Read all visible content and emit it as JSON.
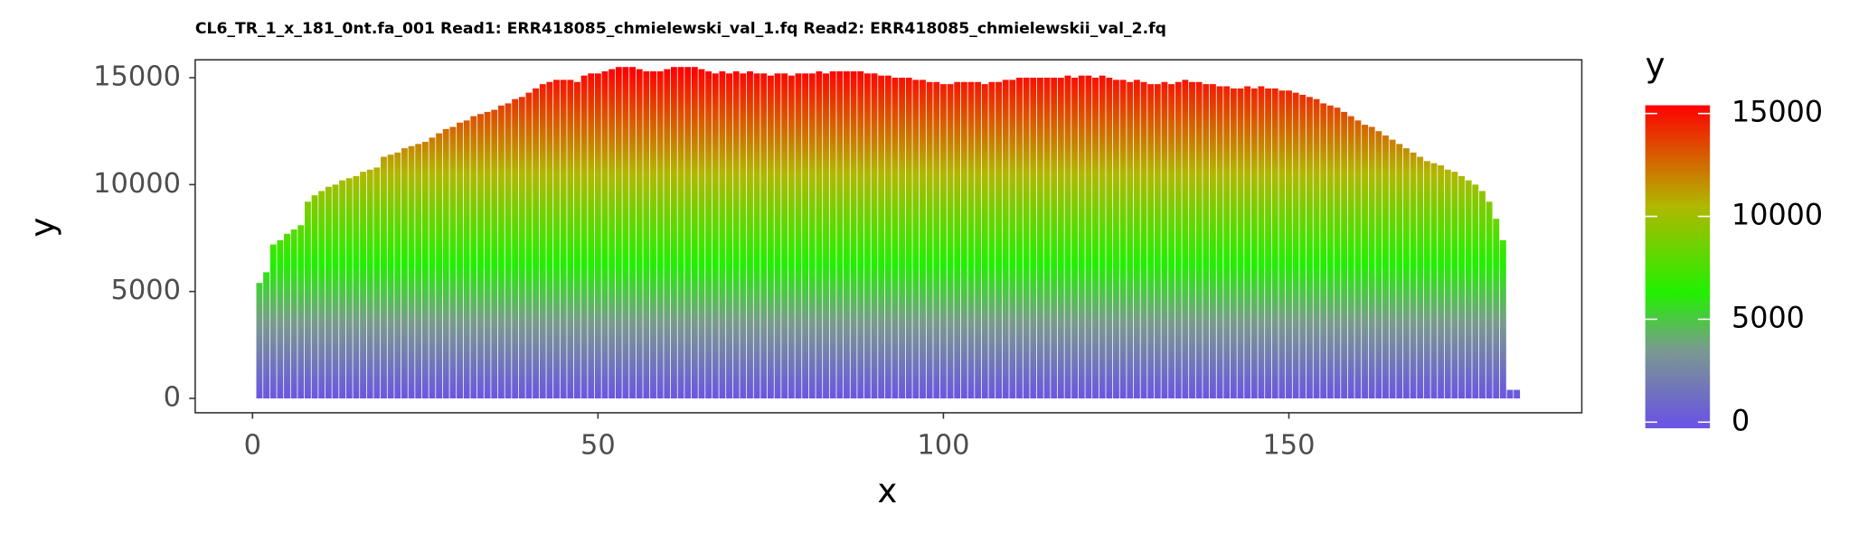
{
  "chart_data": {
    "type": "bar",
    "title": "CL6_TR_1_x_181_0nt.fa_001 Read1: ERR418085_chmielewski_val_1.fq Read2: ERR418085_chmielewskii_val_2.fq",
    "xlabel": "x",
    "ylabel": "y",
    "legend_title": "y",
    "x": [
      1,
      2,
      3,
      4,
      5,
      6,
      7,
      8,
      9,
      10,
      11,
      12,
      13,
      14,
      15,
      16,
      17,
      18,
      19,
      20,
      21,
      22,
      23,
      24,
      25,
      26,
      27,
      28,
      29,
      30,
      31,
      32,
      33,
      34,
      35,
      36,
      37,
      38,
      39,
      40,
      41,
      42,
      43,
      44,
      45,
      46,
      47,
      48,
      49,
      50,
      51,
      52,
      53,
      54,
      55,
      56,
      57,
      58,
      59,
      60,
      61,
      62,
      63,
      64,
      65,
      66,
      67,
      68,
      69,
      70,
      71,
      72,
      73,
      74,
      75,
      76,
      77,
      78,
      79,
      80,
      81,
      82,
      83,
      84,
      85,
      86,
      87,
      88,
      89,
      90,
      91,
      92,
      93,
      94,
      95,
      96,
      97,
      98,
      99,
      100,
      101,
      102,
      103,
      104,
      105,
      106,
      107,
      108,
      109,
      110,
      111,
      112,
      113,
      114,
      115,
      116,
      117,
      118,
      119,
      120,
      121,
      122,
      123,
      124,
      125,
      126,
      127,
      128,
      129,
      130,
      131,
      132,
      133,
      134,
      135,
      136,
      137,
      138,
      139,
      140,
      141,
      142,
      143,
      144,
      145,
      146,
      147,
      148,
      149,
      150,
      151,
      152,
      153,
      154,
      155,
      156,
      157,
      158,
      159,
      160,
      161,
      162,
      163,
      164,
      165,
      166,
      167,
      168,
      169,
      170,
      171,
      172,
      173,
      174,
      175,
      176,
      177,
      178,
      179,
      180,
      181,
      182,
      183
    ],
    "values": [
      5400,
      5900,
      7200,
      7400,
      7700,
      7900,
      8100,
      9200,
      9500,
      9700,
      9900,
      10000,
      10200,
      10300,
      10400,
      10600,
      10700,
      10800,
      11300,
      11400,
      11500,
      11700,
      11800,
      11900,
      12000,
      12200,
      12400,
      12600,
      12700,
      12900,
      13000,
      13200,
      13300,
      13400,
      13500,
      13700,
      13800,
      14000,
      14100,
      14300,
      14500,
      14700,
      14800,
      14900,
      14900,
      14900,
      14800,
      15100,
      15200,
      15200,
      15300,
      15400,
      15500,
      15500,
      15500,
      15400,
      15300,
      15300,
      15300,
      15400,
      15500,
      15500,
      15500,
      15500,
      15400,
      15300,
      15200,
      15300,
      15200,
      15300,
      15200,
      15300,
      15200,
      15200,
      15100,
      15200,
      15200,
      15100,
      15200,
      15200,
      15200,
      15300,
      15200,
      15300,
      15300,
      15300,
      15300,
      15300,
      15200,
      15200,
      15100,
      15100,
      15000,
      15000,
      15000,
      14900,
      14900,
      14800,
      14800,
      14700,
      14700,
      14800,
      14800,
      14800,
      14800,
      14700,
      14800,
      14800,
      14900,
      14900,
      15000,
      15000,
      15000,
      15000,
      15000,
      15000,
      15000,
      15100,
      15000,
      15100,
      15100,
      15000,
      15100,
      15000,
      14900,
      14900,
      14800,
      14900,
      14800,
      14700,
      14700,
      14800,
      14700,
      14800,
      14900,
      14800,
      14800,
      14700,
      14700,
      14600,
      14600,
      14500,
      14500,
      14600,
      14500,
      14600,
      14500,
      14500,
      14400,
      14400,
      14300,
      14200,
      14100,
      14000,
      13800,
      13700,
      13600,
      13400,
      13200,
      13000,
      12800,
      12700,
      12500,
      12300,
      12100,
      11900,
      11700,
      11500,
      11300,
      11100,
      11000,
      10900,
      10700,
      10600,
      10400,
      10200,
      10000,
      9700,
      9200,
      8400,
      7400,
      400,
      400
    ],
    "xlim": [
      -8.3,
      192.4
    ],
    "ylim": [
      -672,
      15837
    ],
    "xticks": [
      0,
      50,
      100,
      150
    ],
    "yticks": [
      0,
      5000,
      10000,
      15000
    ],
    "colorbar_lim": [
      -300,
      15400
    ],
    "colorbar_ticks": [
      0,
      5000,
      10000,
      15000
    ],
    "colorscale": [
      {
        "value": 0,
        "color": "#6a56e0"
      },
      {
        "value": 3500,
        "color": "#7a9a90"
      },
      {
        "value": 6300,
        "color": "#22f000"
      },
      {
        "value": 10500,
        "color": "#b0b800"
      },
      {
        "value": 15400,
        "color": "#ff0000"
      }
    ],
    "grid": false
  }
}
